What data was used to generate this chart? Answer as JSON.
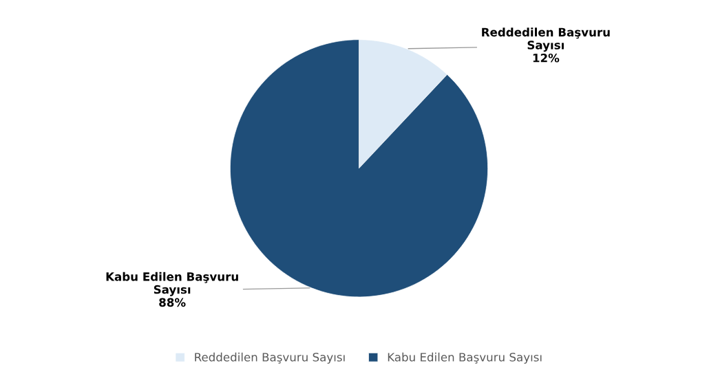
{
  "chart_data": {
    "type": "pie",
    "categories": [
      "Reddedilen Başvuru Sayısı",
      "Kabu Edilen Başvuru Sayısı"
    ],
    "values": [
      12,
      88
    ],
    "colors": [
      "#ddeaf6",
      "#1f4e79"
    ],
    "value_labels": [
      "12%",
      "88%"
    ],
    "legend": "bottom"
  }
}
